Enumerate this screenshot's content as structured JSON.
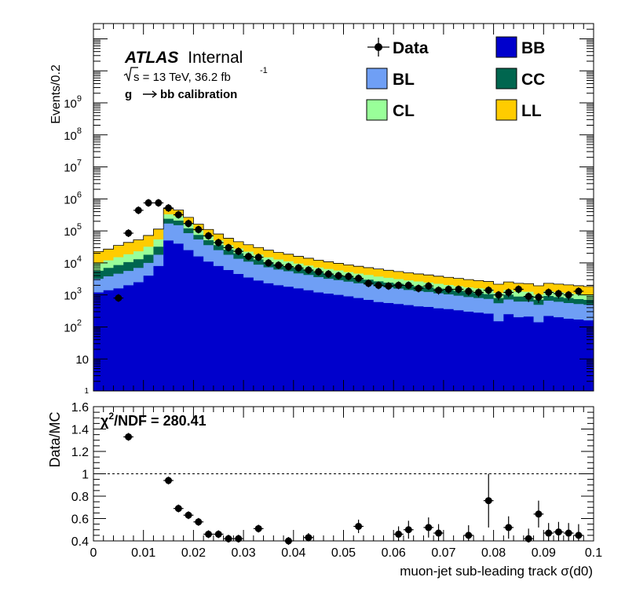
{
  "chart_data": [
    {
      "type": "area",
      "subtype": "stacked-step-histogram-with-data-points",
      "y_scale": "log",
      "ylabel": "Events/0.2",
      "xlim": [
        0,
        0.1
      ],
      "ylim": [
        1,
        300000000000
      ],
      "y_tick_labels": [
        {
          "value": 1,
          "base": "1",
          "exp": ""
        },
        {
          "value": 10,
          "base": "10",
          "exp": ""
        },
        {
          "value": 100,
          "base": "10",
          "exp": "2"
        },
        {
          "value": 1000,
          "base": "10",
          "exp": "3"
        },
        {
          "value": 10000,
          "base": "10",
          "exp": "4"
        },
        {
          "value": 100000,
          "base": "10",
          "exp": "5"
        },
        {
          "value": 1000000,
          "base": "10",
          "exp": "6"
        },
        {
          "value": 10000000,
          "base": "10",
          "exp": "7"
        },
        {
          "value": 100000000,
          "base": "10",
          "exp": "8"
        },
        {
          "value": 1000000000,
          "base": "10",
          "exp": "9"
        }
      ],
      "annotations": {
        "atlas": "ATLAS",
        "internal": "Internal",
        "sqrt_s": "s = 13 TeV, 36.2 fb",
        "lumi_exp": "-1",
        "calibration": "g",
        "calibration_rest": "bb calibration"
      },
      "legend_placement": "top-right",
      "legend": [
        {
          "key": "data",
          "label": "Data",
          "kind": "marker"
        },
        {
          "key": "BB",
          "label": "BB",
          "kind": "fill",
          "color": "#0000cc"
        },
        {
          "key": "BL",
          "label": "BL",
          "kind": "fill",
          "color": "#6f9ff5"
        },
        {
          "key": "CC",
          "label": "CC",
          "kind": "fill",
          "color": "#00664f"
        },
        {
          "key": "CL",
          "label": "CL",
          "kind": "fill",
          "color": "#99ff99"
        },
        {
          "key": "LL",
          "label": "LL",
          "kind": "fill",
          "color": "#ffcc00"
        }
      ],
      "bin_edges": [
        0,
        0.002,
        0.004,
        0.006,
        0.008,
        0.01,
        0.012,
        0.014,
        0.016,
        0.018,
        0.02,
        0.022,
        0.024,
        0.026,
        0.028,
        0.03,
        0.032,
        0.034,
        0.036,
        0.038,
        0.04,
        0.042,
        0.044,
        0.046,
        0.048,
        0.05,
        0.052,
        0.054,
        0.056,
        0.058,
        0.06,
        0.062,
        0.064,
        0.066,
        0.068,
        0.07,
        0.072,
        0.074,
        0.076,
        0.078,
        0.08,
        0.082,
        0.084,
        0.086,
        0.088,
        0.09,
        0.092,
        0.094,
        0.096,
        0.098,
        0.1
      ],
      "stack_order": [
        "BB",
        "BL",
        "CC",
        "CL",
        "LL"
      ],
      "series": [
        {
          "name": "BB",
          "color": "#0000cc",
          "values": [
            1200,
            1400,
            1600,
            2000,
            2500,
            4000,
            8000,
            50000,
            40000,
            25000,
            16000,
            11000,
            8000,
            6000,
            4500,
            3500,
            2800,
            2300,
            2000,
            1800,
            1600,
            1400,
            1200,
            1100,
            1000,
            900,
            800,
            700,
            600,
            560,
            520,
            480,
            440,
            420,
            380,
            360,
            330,
            300,
            280,
            260,
            150,
            250,
            200,
            210,
            140,
            220,
            200,
            180,
            170,
            160
          ]
        },
        {
          "name": "BL",
          "color": "#6f9ff5",
          "values": [
            2000,
            2400,
            3000,
            3600,
            4500,
            6000,
            10000,
            120000,
            110000,
            60000,
            38000,
            25000,
            17000,
            12000,
            9000,
            7500,
            6000,
            5000,
            4200,
            3700,
            3100,
            2800,
            2400,
            2100,
            1900,
            1700,
            1500,
            1400,
            1250,
            1150,
            1050,
            950,
            880,
            820,
            740,
            680,
            620,
            560,
            520,
            490,
            400,
            470,
            420,
            410,
            350,
            440,
            410,
            380,
            350,
            330
          ]
        },
        {
          "name": "CC",
          "color": "#00664f",
          "values": [
            2500,
            3200,
            4000,
            5000,
            6000,
            8000,
            14000,
            70000,
            60000,
            35000,
            21000,
            15000,
            11000,
            8000,
            6500,
            5000,
            4000,
            3200,
            2800,
            2400,
            2000,
            1700,
            1500,
            1350,
            1200,
            1100,
            1000,
            900,
            800,
            720,
            660,
            600,
            550,
            500,
            460,
            420,
            390,
            360,
            340,
            310,
            250,
            300,
            270,
            260,
            220,
            270,
            250,
            240,
            220,
            210
          ]
        },
        {
          "name": "CL",
          "color": "#99ff99",
          "values": [
            4000,
            5000,
            6500,
            8000,
            10000,
            14000,
            22000,
            90000,
            80000,
            45000,
            28000,
            20000,
            14000,
            10000,
            8000,
            6500,
            5500,
            4500,
            3800,
            3300,
            2800,
            2400,
            2100,
            1900,
            1700,
            1500,
            1350,
            1200,
            1100,
            1000,
            900,
            820,
            760,
            700,
            640,
            580,
            540,
            500,
            470,
            440,
            360,
            420,
            390,
            380,
            320,
            380,
            360,
            340,
            320,
            300
          ]
        },
        {
          "name": "LL",
          "color": "#ffcc00",
          "values": [
            13000,
            15000,
            20000,
            25000,
            30000,
            40000,
            60000,
            170000,
            160000,
            100000,
            60000,
            40000,
            30000,
            23000,
            18000,
            14500,
            12000,
            10000,
            8500,
            7500,
            6500,
            5700,
            5000,
            4400,
            3900,
            3500,
            3200,
            2900,
            2700,
            2450,
            2250,
            2050,
            1900,
            1780,
            1630,
            1510,
            1400,
            1290,
            1200,
            1130,
            1000,
            1100,
            1030,
            1000,
            900,
            1000,
            960,
            920,
            880,
            840
          ]
        }
      ],
      "data_points": {
        "x": [
          0.005,
          0.007,
          0.009,
          0.011,
          0.013,
          0.015,
          0.017,
          0.019,
          0.021,
          0.023,
          0.025,
          0.027,
          0.029,
          0.031,
          0.033,
          0.035,
          0.037,
          0.039,
          0.041,
          0.043,
          0.045,
          0.047,
          0.049,
          0.051,
          0.053,
          0.055,
          0.057,
          0.059,
          0.061,
          0.063,
          0.065,
          0.067,
          0.069,
          0.071,
          0.073,
          0.075,
          0.077,
          0.079,
          0.081,
          0.083,
          0.085,
          0.087,
          0.089,
          0.091,
          0.093,
          0.095,
          0.097
        ],
        "y": [
          800,
          85000,
          440000,
          750000,
          750000,
          520000,
          320000,
          170000,
          110000,
          70000,
          43000,
          30000,
          23000,
          16000,
          15000,
          10000,
          8500,
          7700,
          7000,
          6000,
          5300,
          4500,
          4000,
          3800,
          3300,
          2300,
          2000,
          1900,
          2000,
          2000,
          1600,
          1900,
          1400,
          1500,
          1500,
          1300,
          1200,
          1400,
          1000,
          1200,
          1500,
          900,
          850,
          1200,
          1100,
          1000,
          1300
        ],
        "y_err_lo": [
          100,
          3000,
          10000,
          15000,
          15000,
          12000,
          9000,
          6000,
          5000,
          4000,
          3000,
          2500,
          2000,
          1600,
          1500,
          1200,
          1000,
          900,
          850,
          800,
          750,
          700,
          650,
          620,
          580,
          480,
          450,
          430,
          450,
          450,
          400,
          430,
          380,
          390,
          390,
          360,
          350,
          380,
          320,
          350,
          390,
          300,
          290,
          350,
          330,
          320,
          360
        ],
        "y_err_hi": [
          100,
          3000,
          10000,
          15000,
          15000,
          12000,
          9000,
          6000,
          5000,
          4000,
          3000,
          2500,
          2000,
          1600,
          1500,
          1200,
          1000,
          900,
          850,
          800,
          750,
          700,
          650,
          620,
          580,
          480,
          450,
          430,
          450,
          450,
          400,
          430,
          380,
          390,
          390,
          360,
          350,
          380,
          320,
          350,
          390,
          300,
          290,
          350,
          330,
          320,
          360
        ]
      }
    },
    {
      "type": "scatter",
      "ylabel": "Data/MC",
      "xlabel": "muon-jet sub-leading track σ(d0)",
      "xlim": [
        0,
        0.1
      ],
      "ylim": [
        0.4,
        1.6
      ],
      "x_ticks": [
        "0",
        "0.01",
        "0.02",
        "0.03",
        "0.04",
        "0.05",
        "0.06",
        "0.07",
        "0.08",
        "0.09",
        "0.1"
      ],
      "x_tick_values": [
        0,
        0.01,
        0.02,
        0.03,
        0.04,
        0.05,
        0.06,
        0.07,
        0.08,
        0.09,
        0.1
      ],
      "y_ticks": [
        "0.4",
        "0.6",
        "0.8",
        "1",
        "1.2",
        "1.4",
        "1.6"
      ],
      "y_tick_values": [
        0.4,
        0.6,
        0.8,
        1.0,
        1.2,
        1.4,
        1.6
      ],
      "reference_line": 1.0,
      "chi2": {
        "label": "/NDF = 280.41",
        "chi": "χ",
        "sup": "2"
      },
      "points": {
        "x": [
          0.007,
          0.015,
          0.017,
          0.019,
          0.021,
          0.023,
          0.025,
          0.027,
          0.029,
          0.033,
          0.039,
          0.043,
          0.053,
          0.061,
          0.063,
          0.067,
          0.069,
          0.075,
          0.079,
          0.083,
          0.087,
          0.089,
          0.091,
          0.093,
          0.095,
          0.097
        ],
        "y": [
          1.33,
          0.94,
          0.69,
          0.63,
          0.57,
          0.46,
          0.46,
          0.42,
          0.42,
          0.51,
          0.4,
          0.43,
          0.53,
          0.46,
          0.5,
          0.52,
          0.47,
          0.45,
          0.76,
          0.52,
          0.42,
          0.64,
          0.47,
          0.48,
          0.47,
          0.45
        ],
        "y_err": [
          0.03,
          0.02,
          0.02,
          0.02,
          0.02,
          0.02,
          0.02,
          0.02,
          0.02,
          0.03,
          0.03,
          0.04,
          0.06,
          0.07,
          0.08,
          0.09,
          0.08,
          0.09,
          0.24,
          0.1,
          0.09,
          0.12,
          0.09,
          0.09,
          0.09,
          0.1
        ],
        "x_err": 0.001
      }
    }
  ]
}
